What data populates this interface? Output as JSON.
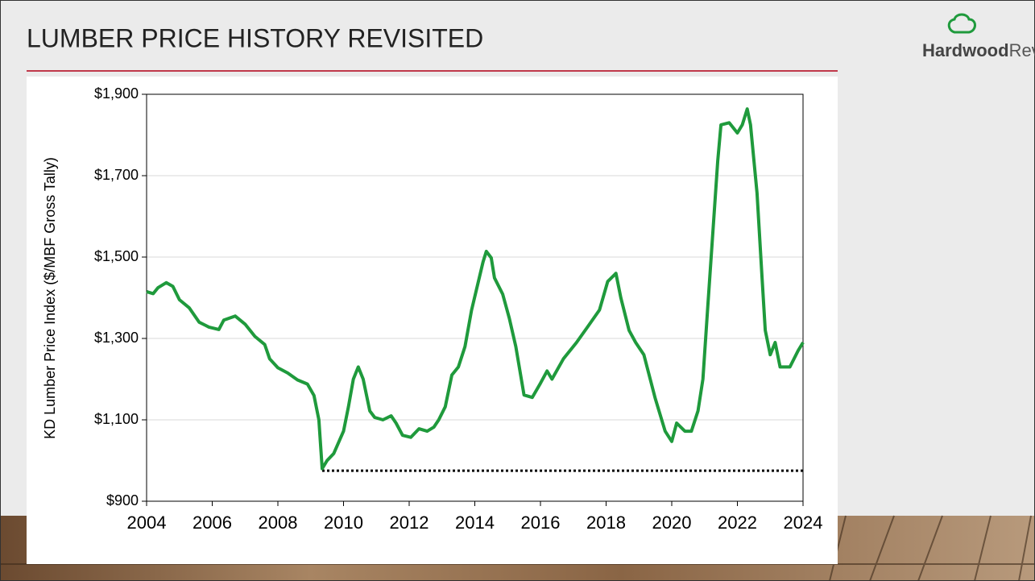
{
  "logo": {
    "bold": "Hardwood",
    "light": "Review"
  },
  "chart_data": {
    "type": "line",
    "title": "LUMBER PRICE HISTORY REVISITED",
    "y_label": "KD Lumber Price Index ($/MBF Gross Tally)",
    "x": [
      2004.0,
      2004.2,
      2004.35,
      2004.6,
      2004.8,
      2005.0,
      2005.3,
      2005.6,
      2005.9,
      2006.2,
      2006.35,
      2006.7,
      2007.0,
      2007.3,
      2007.6,
      2007.75,
      2008.0,
      2008.3,
      2008.6,
      2008.9,
      2009.1,
      2009.25,
      2009.35,
      2009.5,
      2009.7,
      2010.0,
      2010.15,
      2010.3,
      2010.45,
      2010.6,
      2010.8,
      2010.95,
      2011.2,
      2011.45,
      2011.6,
      2011.8,
      2012.05,
      2012.3,
      2012.55,
      2012.75,
      2012.9,
      2013.1,
      2013.3,
      2013.5,
      2013.7,
      2013.9,
      2014.25,
      2014.35,
      2014.5,
      2014.6,
      2014.85,
      2015.05,
      2015.25,
      2015.5,
      2015.75,
      2016.0,
      2016.2,
      2016.35,
      2016.7,
      2017.1,
      2017.45,
      2017.8,
      2018.05,
      2018.3,
      2018.45,
      2018.7,
      2018.9,
      2019.15,
      2019.5,
      2019.8,
      2020.0,
      2020.15,
      2020.4,
      2020.6,
      2020.8,
      2020.95,
      2021.1,
      2021.4,
      2021.5,
      2021.75,
      2022.0,
      2022.15,
      2022.3,
      2022.4,
      2022.6,
      2022.75,
      2022.85,
      2023.0,
      2023.15,
      2023.3,
      2023.6,
      2023.85,
      2024.0
    ],
    "series": [
      {
        "color": "#1f9a3c",
        "values": [
          1415,
          1410,
          1425,
          1437,
          1428,
          1395,
          1375,
          1340,
          1328,
          1322,
          1345,
          1355,
          1335,
          1305,
          1285,
          1250,
          1228,
          1215,
          1198,
          1188,
          1160,
          1100,
          980,
          1000,
          1017,
          1072,
          1132,
          1200,
          1230,
          1200,
          1122,
          1106,
          1100,
          1110,
          1092,
          1062,
          1057,
          1078,
          1072,
          1082,
          1100,
          1132,
          1210,
          1230,
          1280,
          1369,
          1488,
          1514,
          1498,
          1449,
          1409,
          1350,
          1280,
          1161,
          1155,
          1190,
          1220,
          1200,
          1250,
          1290,
          1330,
          1370,
          1440,
          1460,
          1400,
          1320,
          1290,
          1260,
          1152,
          1072,
          1047,
          1092,
          1072,
          1072,
          1122,
          1200,
          1380,
          1736,
          1825,
          1830,
          1805,
          1825,
          1864,
          1825,
          1657,
          1450,
          1320,
          1260,
          1290,
          1230,
          1230,
          1270,
          1290
        ]
      }
    ],
    "reference_line": {
      "value": 975,
      "x": [
        2009.35,
        2024.0
      ],
      "color": "#000000"
    },
    "xlim": [
      2004,
      2024
    ],
    "xticks": [
      2004,
      2006,
      2008,
      2010,
      2012,
      2014,
      2016,
      2018,
      2020,
      2022,
      2024
    ],
    "ylim": [
      900,
      1900
    ],
    "yticks": [
      {
        "value": 900,
        "label": "$900"
      },
      {
        "value": 1100,
        "label": "$1,100"
      },
      {
        "value": 1300,
        "label": "$1,300"
      },
      {
        "value": 1500,
        "label": "$1,500"
      },
      {
        "value": 1700,
        "label": "$1,700"
      },
      {
        "value": 1900,
        "label": "$1,900"
      }
    ],
    "grid": true
  }
}
